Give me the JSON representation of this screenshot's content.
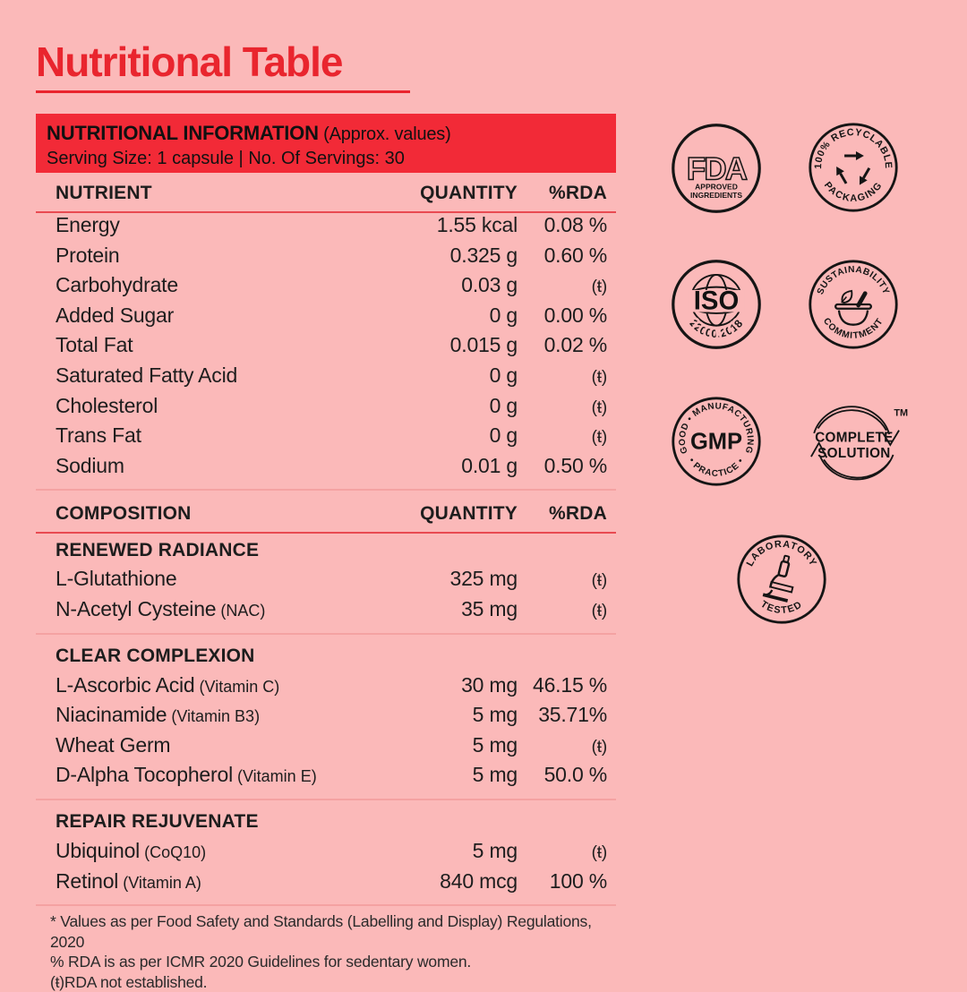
{
  "page": {
    "title": "Nutritional Table",
    "bg": "#FBB9B9",
    "accent_red": "#E9252E",
    "bar_red": "#F22A37",
    "ink": "#151515"
  },
  "info_bar": {
    "title": "NUTRITIONAL INFORMATION",
    "title_note": " (Approx. values)",
    "serving_line": "Serving Size: 1 capsule | No. Of Servings: 30"
  },
  "table": {
    "header1": {
      "col1": "NUTRIENT",
      "col2": "QUANTITY",
      "col3": "%RDA"
    },
    "nutrients": [
      {
        "name": "Energy",
        "note": "",
        "qty": "1.55 kcal",
        "rda": "0.08 %"
      },
      {
        "name": "Protein",
        "note": "",
        "qty": "0.325 g",
        "rda": "0.60 %"
      },
      {
        "name": "Carbohydrate",
        "note": "",
        "qty": "0.03 g",
        "rda": "(ŧ)"
      },
      {
        "name": "Added Sugar",
        "note": "",
        "qty": "0 g",
        "rda": "0.00 %"
      },
      {
        "name": "Total Fat",
        "note": "",
        "qty": "0.015 g",
        "rda": "0.02 %"
      },
      {
        "name": "Saturated Fatty Acid",
        "note": "",
        "qty": "0 g",
        "rda": "(ŧ)"
      },
      {
        "name": "Cholesterol",
        "note": "",
        "qty": "0 g",
        "rda": "(ŧ)"
      },
      {
        "name": "Trans Fat",
        "note": "",
        "qty": "0 g",
        "rda": "(ŧ)"
      },
      {
        "name": "Sodium",
        "note": "",
        "qty": "0.01 g",
        "rda": "0.50 %"
      }
    ],
    "header2": {
      "col1": "COMPOSITION",
      "col2": "QUANTITY",
      "col3": "%RDA"
    },
    "sections": [
      {
        "title": "RENEWED RADIANCE",
        "rows": [
          {
            "name": "L-Glutathione",
            "note": "",
            "qty": "325 mg",
            "rda": "(ŧ)"
          },
          {
            "name": "N-Acetyl Cysteine",
            "note": "(NAC)",
            "qty": "35 mg",
            "rda": "(ŧ)"
          }
        ]
      },
      {
        "title": "CLEAR COMPLEXION",
        "rows": [
          {
            "name": "L-Ascorbic Acid",
            "note": "(Vitamin C)",
            "qty": "30 mg",
            "rda": "46.15 %"
          },
          {
            "name": "Niacinamide",
            "note": "(Vitamin B3)",
            "qty": "5 mg",
            "rda": "35.71%"
          },
          {
            "name": "Wheat Germ",
            "note": "",
            "qty": "5 mg",
            "rda": "(ŧ)"
          },
          {
            "name": "D-Alpha Tocopherol",
            "note": "(Vitamin E)",
            "qty": "5 mg",
            "rda": "50.0 %"
          }
        ]
      },
      {
        "title": "REPAIR REJUVENATE",
        "rows": [
          {
            "name": "Ubiquinol",
            "note": "(CoQ10)",
            "qty": "5 mg",
            "rda": "(ŧ)"
          },
          {
            "name": "Retinol",
            "note": "(Vitamin A)",
            "qty": "840 mcg",
            "rda": "100 %"
          }
        ]
      }
    ],
    "footnotes": [
      "* Values as per Food Safety and Standards (Labelling and Display) Regulations, 2020",
      "% RDA is as per ICMR 2020 Guidelines for sedentary women.",
      "(ŧ)RDA not established."
    ]
  },
  "badges": {
    "fda": {
      "line1": "FDA",
      "line2": "APPROVED",
      "line3": "INGREDIENTS"
    },
    "recyclable": {
      "top": "100% RECYCLABLE",
      "bottom": "PACKAGING"
    },
    "iso": {
      "center": "ISO",
      "bottom": "22000:2018"
    },
    "sustainability": {
      "top": "SUSTAINABILITY",
      "bottom": "COMMITMENT"
    },
    "gmp": {
      "top": "GOOD • MANUFACTURING",
      "center": "GMP",
      "bottom": "• PRACTICE •"
    },
    "complete": {
      "line1": "COMPLETE",
      "line2": "SOLUTION",
      "tm": "TM"
    },
    "lab": {
      "top": "LABORATORY",
      "bottom": "TESTED"
    }
  }
}
